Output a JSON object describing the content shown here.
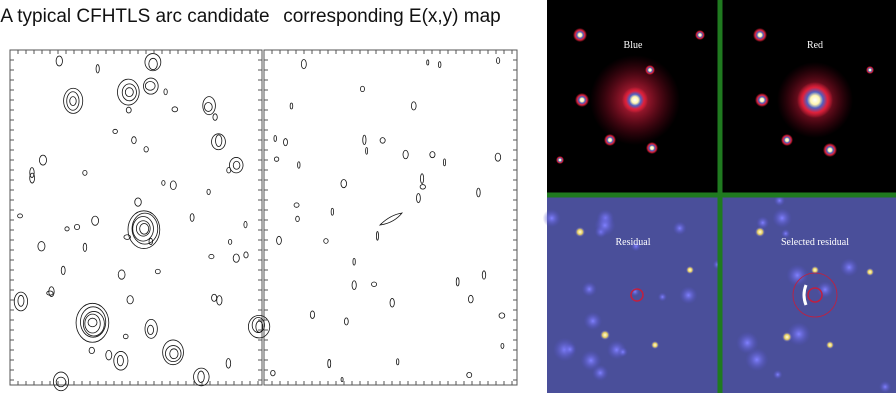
{
  "left_panel": {
    "title": "A typical CFHTLS arc candidate"
  },
  "middle_panel": {
    "title": "corresponding E(x,y)  map"
  },
  "quadrants": [
    {
      "label": "Blue"
    },
    {
      "label": "Red"
    },
    {
      "label": "Residual"
    },
    {
      "label": "Selected residual"
    }
  ]
}
